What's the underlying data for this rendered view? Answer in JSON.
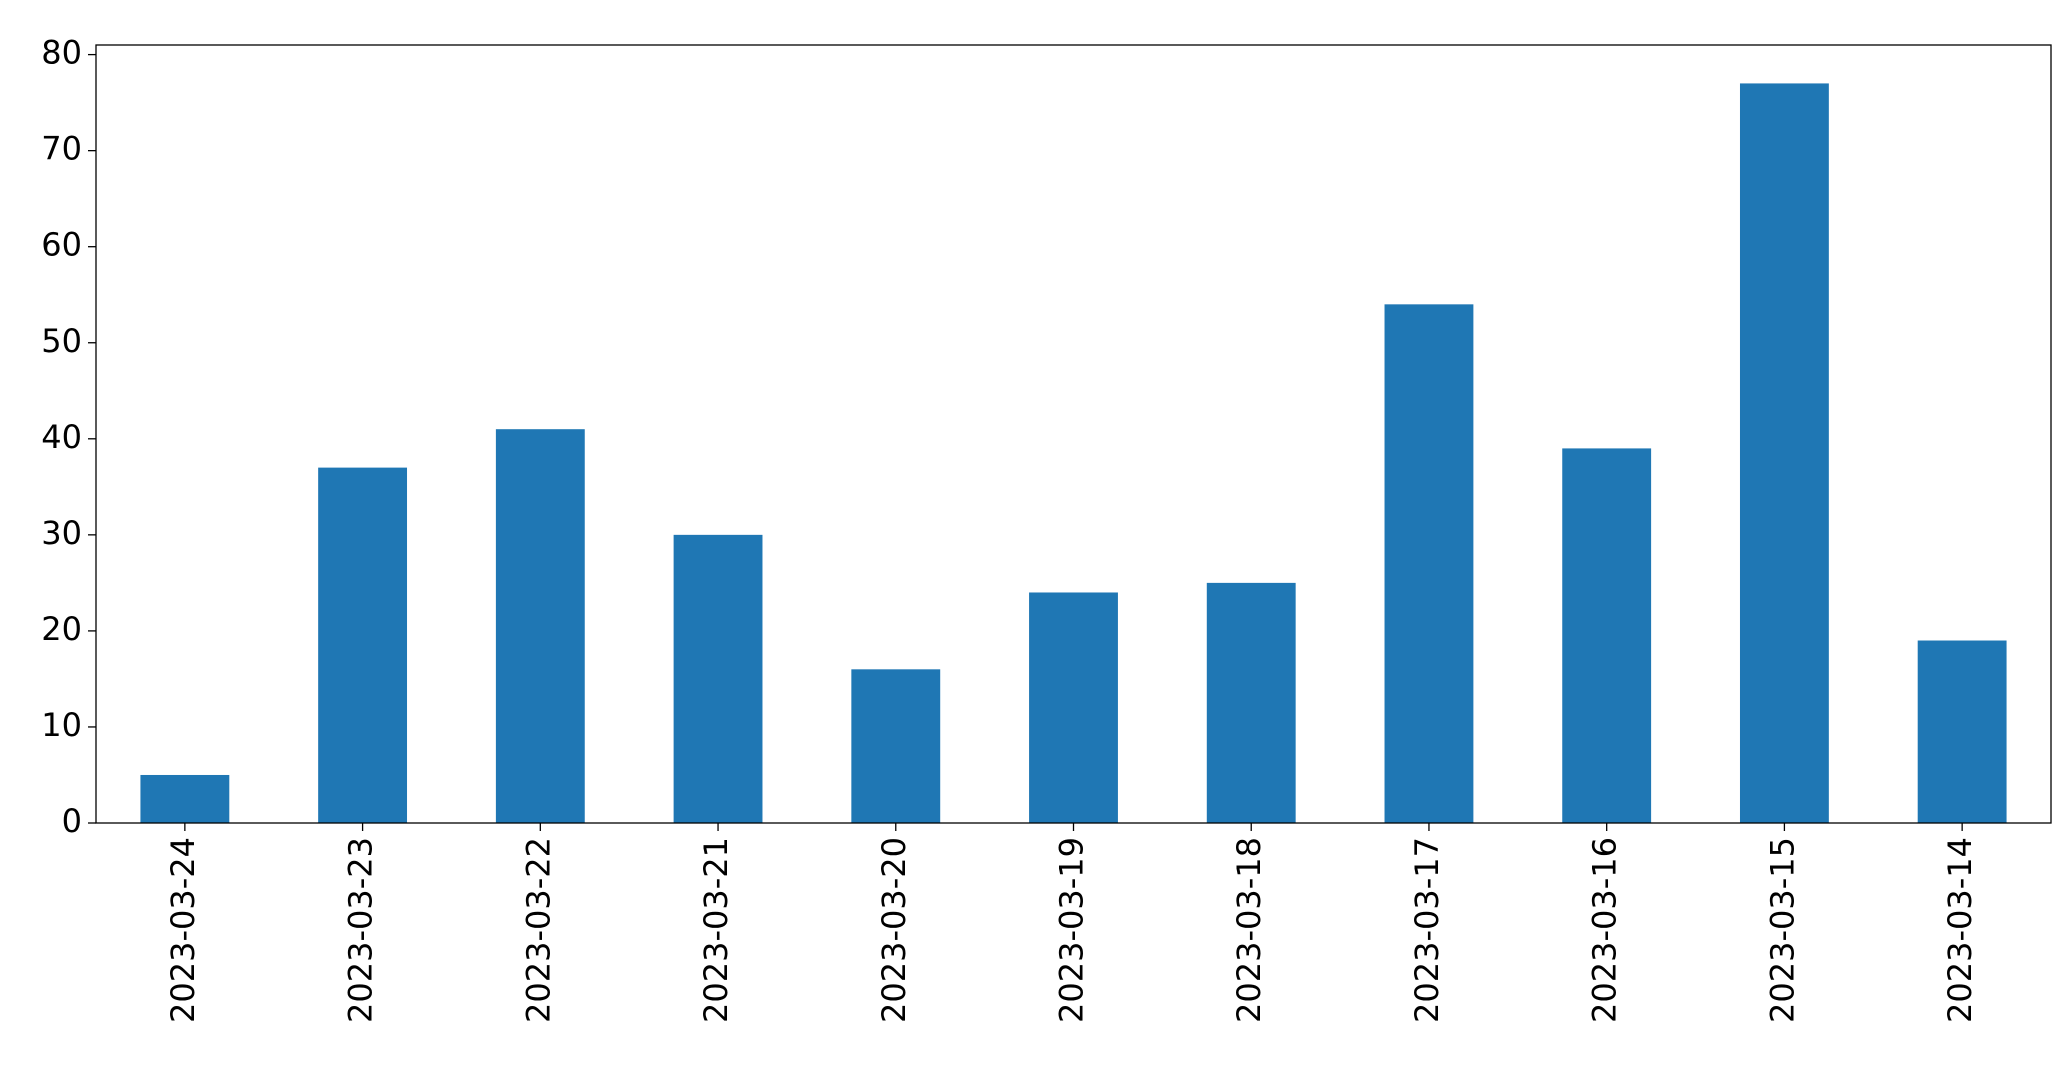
{
  "chart_data": {
    "type": "bar",
    "categories": [
      "2023-03-24",
      "2023-03-23",
      "2023-03-22",
      "2023-03-21",
      "2023-03-20",
      "2023-03-19",
      "2023-03-18",
      "2023-03-17",
      "2023-03-16",
      "2023-03-15",
      "2023-03-14"
    ],
    "values": [
      5,
      37,
      41,
      30,
      16,
      24,
      25,
      54,
      39,
      77,
      19
    ],
    "color": "#1f77b4",
    "ylim": [
      0,
      81
    ],
    "yticks": [
      0,
      10,
      20,
      30,
      40,
      50,
      60,
      70,
      80
    ],
    "grid": false
  }
}
